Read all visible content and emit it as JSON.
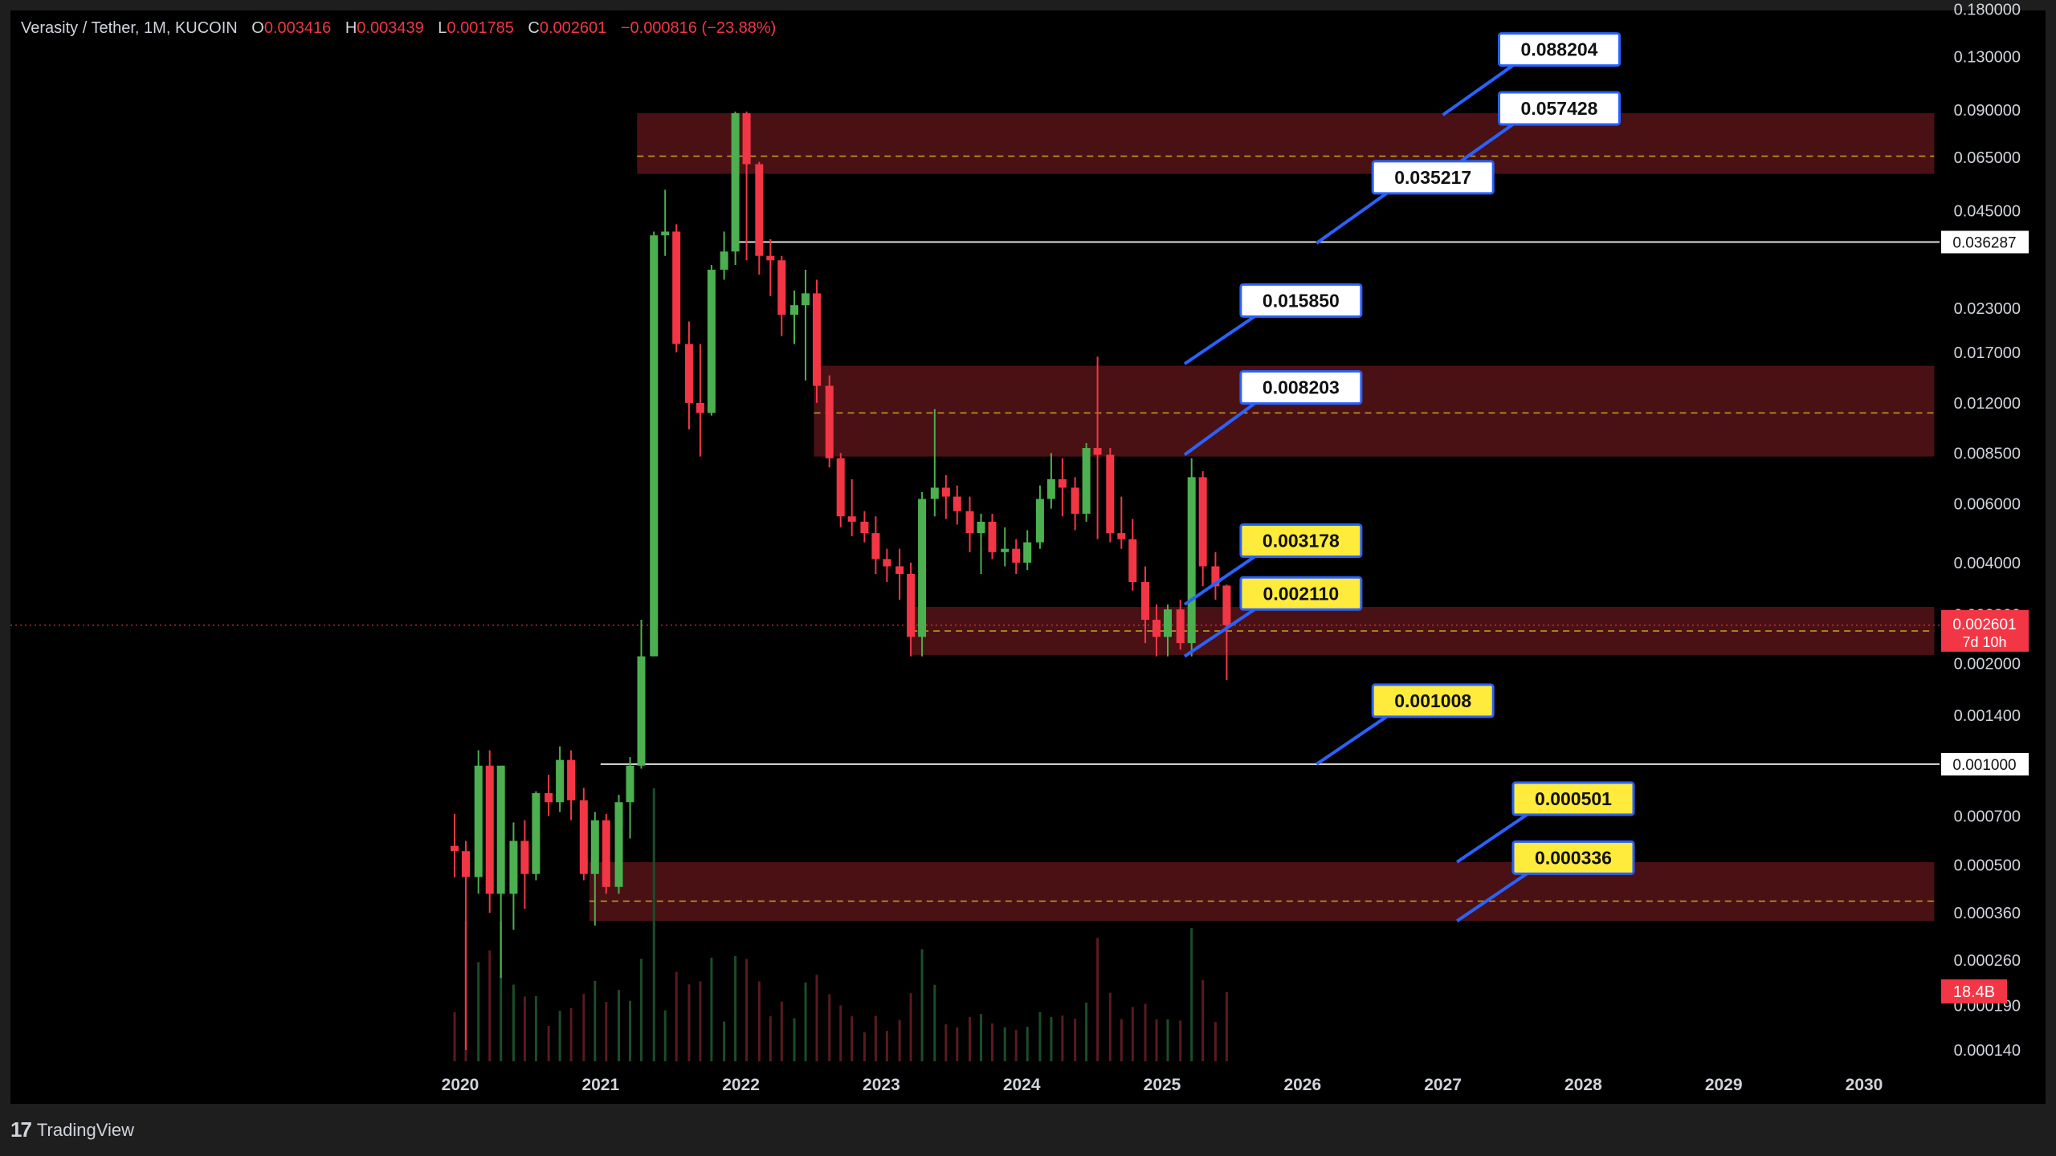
{
  "legend": {
    "symbol": "Verasity / Tether, 1M, KUCOIN",
    "open_label": "O",
    "open": "0.003416",
    "high_label": "H",
    "high": "0.003439",
    "low_label": "L",
    "low": "0.001785",
    "close_label": "C",
    "close": "0.002601",
    "change": "−0.000816 (−23.88%)"
  },
  "branding": {
    "logo_mark": "17",
    "logo_text": "TradingView"
  },
  "colors": {
    "up": "#4caf50",
    "down": "#f23645",
    "zone_fill": "#4a1115",
    "zone_mid": "#c9a227",
    "callout_white": "#ffffff",
    "callout_yellow": "#ffeb3b",
    "callout_border": "#2962ff"
  },
  "chart_data": {
    "type": "candlestick",
    "timeframe": "1M",
    "y_scale": "log",
    "ylim": [
      0.00012,
      0.18
    ],
    "xlim": [
      "2019-12",
      "2030-06"
    ],
    "x_tick_labels": [
      "2020",
      "2021",
      "2022",
      "2023",
      "2024",
      "2025",
      "2026",
      "2027",
      "2028",
      "2029",
      "2030"
    ],
    "y_tick_labels": [
      "0.180000",
      "0.130000",
      "0.090000",
      "0.065000",
      "0.045000",
      "0.035000",
      "0.023000",
      "0.017000",
      "0.012000",
      "0.008500",
      "0.006000",
      "0.004000",
      "0.002800",
      "0.002000",
      "0.001400",
      "0.000700",
      "0.000500",
      "0.000360",
      "0.000260",
      "0.000190",
      "0.000140"
    ],
    "candles": [
      [
        2019.96,
        0.00057,
        0.00071,
        0.00046,
        0.00055
      ],
      [
        2020.04,
        0.00055,
        0.00059,
        0.00014,
        0.00046
      ],
      [
        2020.13,
        0.00046,
        0.0011,
        0.00041,
        0.00099
      ],
      [
        2020.21,
        0.00099,
        0.0011,
        0.00036,
        0.00041
      ],
      [
        2020.29,
        0.00041,
        0.00097,
        0.00023,
        0.00099
      ],
      [
        2020.38,
        0.00041,
        0.00067,
        0.00032,
        0.00059
      ],
      [
        2020.46,
        0.00059,
        0.00068,
        0.00037,
        0.00047
      ],
      [
        2020.54,
        0.00047,
        0.00083,
        0.00045,
        0.00082
      ],
      [
        2020.63,
        0.00082,
        0.00093,
        0.0007,
        0.00077
      ],
      [
        2020.71,
        0.00077,
        0.00113,
        0.00072,
        0.00103
      ],
      [
        2020.79,
        0.00103,
        0.0011,
        0.00068,
        0.00078
      ],
      [
        2020.88,
        0.00078,
        0.00085,
        0.00045,
        0.00047
      ],
      [
        2020.96,
        0.00047,
        0.00072,
        0.00033,
        0.00068
      ],
      [
        2021.04,
        0.00068,
        0.00071,
        0.00041,
        0.00043
      ],
      [
        2021.13,
        0.00043,
        0.00081,
        0.00041,
        0.00077
      ],
      [
        2021.21,
        0.00077,
        0.00105,
        0.0006,
        0.00099
      ],
      [
        2021.29,
        0.00099,
        0.0027,
        0.00097,
        0.0021
      ],
      [
        2021.38,
        0.0021,
        0.039,
        0.0021,
        0.038
      ],
      [
        2021.46,
        0.038,
        0.052,
        0.033,
        0.039
      ],
      [
        2021.54,
        0.039,
        0.041,
        0.017,
        0.018
      ],
      [
        2021.63,
        0.018,
        0.021,
        0.01,
        0.012
      ],
      [
        2021.71,
        0.012,
        0.018,
        0.0083,
        0.0112
      ],
      [
        2021.79,
        0.0112,
        0.031,
        0.011,
        0.03
      ],
      [
        2021.88,
        0.03,
        0.039,
        0.028,
        0.034
      ],
      [
        2021.96,
        0.034,
        0.089,
        0.031,
        0.088
      ],
      [
        2022.04,
        0.088,
        0.089,
        0.032,
        0.062
      ],
      [
        2022.13,
        0.062,
        0.063,
        0.029,
        0.033
      ],
      [
        2022.21,
        0.033,
        0.037,
        0.025,
        0.032
      ],
      [
        2022.29,
        0.032,
        0.033,
        0.019,
        0.022
      ],
      [
        2022.38,
        0.022,
        0.026,
        0.018,
        0.0235
      ],
      [
        2022.46,
        0.0235,
        0.03,
        0.014,
        0.0255
      ],
      [
        2022.54,
        0.0255,
        0.028,
        0.012,
        0.0135
      ],
      [
        2022.63,
        0.0135,
        0.0145,
        0.0077,
        0.0082
      ],
      [
        2022.71,
        0.0082,
        0.0085,
        0.0051,
        0.0055
      ],
      [
        2022.79,
        0.0055,
        0.0071,
        0.0048,
        0.0053
      ],
      [
        2022.88,
        0.0053,
        0.0057,
        0.0046,
        0.0049
      ],
      [
        2022.96,
        0.0049,
        0.0055,
        0.0037,
        0.0041
      ],
      [
        2023.04,
        0.0041,
        0.0044,
        0.0035,
        0.0039
      ],
      [
        2023.13,
        0.0039,
        0.0044,
        0.0031,
        0.0037
      ],
      [
        2023.21,
        0.0037,
        0.004,
        0.0021,
        0.0024
      ],
      [
        2023.29,
        0.0024,
        0.0065,
        0.0021,
        0.0062
      ],
      [
        2023.38,
        0.0062,
        0.0115,
        0.0055,
        0.0067
      ],
      [
        2023.46,
        0.0067,
        0.0073,
        0.0054,
        0.0063
      ],
      [
        2023.54,
        0.0063,
        0.0068,
        0.0052,
        0.0057
      ],
      [
        2023.63,
        0.0057,
        0.0063,
        0.0043,
        0.0049
      ],
      [
        2023.71,
        0.0049,
        0.0056,
        0.0037,
        0.0053
      ],
      [
        2023.79,
        0.0053,
        0.0056,
        0.0041,
        0.0043
      ],
      [
        2023.88,
        0.0043,
        0.0051,
        0.0039,
        0.0044
      ],
      [
        2023.96,
        0.0044,
        0.0047,
        0.0037,
        0.004
      ],
      [
        2024.04,
        0.004,
        0.005,
        0.0038,
        0.0046
      ],
      [
        2024.13,
        0.0046,
        0.0068,
        0.0044,
        0.0062
      ],
      [
        2024.21,
        0.0062,
        0.0085,
        0.0058,
        0.0071
      ],
      [
        2024.29,
        0.0071,
        0.0082,
        0.0055,
        0.0067
      ],
      [
        2024.38,
        0.0067,
        0.0072,
        0.005,
        0.0056
      ],
      [
        2024.46,
        0.0056,
        0.0091,
        0.0053,
        0.0088
      ],
      [
        2024.54,
        0.0088,
        0.0165,
        0.0047,
        0.0084
      ],
      [
        2024.63,
        0.0084,
        0.0088,
        0.0046,
        0.0049
      ],
      [
        2024.71,
        0.0049,
        0.0063,
        0.0044,
        0.0047
      ],
      [
        2024.79,
        0.0047,
        0.0054,
        0.0033,
        0.0035
      ],
      [
        2024.88,
        0.0035,
        0.0039,
        0.0023,
        0.0027
      ],
      [
        2024.96,
        0.0027,
        0.003,
        0.0021,
        0.0024
      ],
      [
        2025.04,
        0.0024,
        0.003,
        0.0021,
        0.0029
      ],
      [
        2025.13,
        0.0029,
        0.0031,
        0.0022,
        0.0023
      ],
      [
        2025.21,
        0.0023,
        0.0082,
        0.0021,
        0.0072
      ],
      [
        2025.29,
        0.0072,
        0.0075,
        0.0034,
        0.0039
      ],
      [
        2025.38,
        0.0039,
        0.0043,
        0.0031,
        0.0034
      ],
      [
        2025.46,
        0.003416,
        0.003439,
        0.001785,
        0.002601
      ]
    ],
    "zones": [
      {
        "from": 2021.26,
        "to": 2030.5,
        "top": 0.088,
        "bottom": 0.058,
        "mid": 0.0655
      },
      {
        "from": 2022.52,
        "to": 2030.5,
        "top": 0.0155,
        "bottom": 0.0083,
        "mid": 0.0112
      },
      {
        "from": 2023.21,
        "to": 2030.5,
        "top": 0.00295,
        "bottom": 0.00212,
        "mid": 0.0025
      },
      {
        "from": 2020.92,
        "to": 2030.5,
        "top": 0.00051,
        "bottom": 0.00034,
        "mid": 0.00039
      }
    ],
    "horizontal_lines": [
      {
        "from": 2021.96,
        "value": 0.036287,
        "label": "0.036287"
      },
      {
        "from": 2021.0,
        "value": 0.001,
        "label": "0.001000"
      }
    ],
    "callouts": [
      {
        "text": "0.088204",
        "style": "white",
        "anchor": [
          2027.0,
          0.087
        ],
        "box": [
          2027.4,
          0.135
        ]
      },
      {
        "text": "0.057428",
        "style": "white",
        "anchor": [
          2027.0,
          0.058
        ],
        "box": [
          2027.4,
          0.09
        ]
      },
      {
        "text": "0.035217",
        "style": "white",
        "anchor": [
          2026.1,
          0.036
        ],
        "box": [
          2026.5,
          0.056
        ]
      },
      {
        "text": "0.015850",
        "style": "white",
        "anchor": [
          2025.16,
          0.0157
        ],
        "box": [
          2025.56,
          0.024
        ]
      },
      {
        "text": "0.008203",
        "style": "white",
        "anchor": [
          2025.16,
          0.0084
        ],
        "box": [
          2025.56,
          0.0132
        ]
      },
      {
        "text": "0.003178",
        "style": "yellow",
        "anchor": [
          2025.16,
          0.003
        ],
        "box": [
          2025.56,
          0.0046
        ]
      },
      {
        "text": "0.002110",
        "style": "yellow",
        "anchor": [
          2025.16,
          0.0021
        ],
        "box": [
          2025.56,
          0.0032
        ]
      },
      {
        "text": "0.001008",
        "style": "yellow",
        "anchor": [
          2026.1,
          0.001
        ],
        "box": [
          2026.5,
          0.00153
        ]
      },
      {
        "text": "0.000501",
        "style": "yellow",
        "anchor": [
          2027.1,
          0.00051
        ],
        "box": [
          2027.5,
          0.00078
        ]
      },
      {
        "text": "0.000336",
        "style": "yellow",
        "anchor": [
          2027.1,
          0.00034
        ],
        "box": [
          2027.5,
          0.00052
        ]
      }
    ],
    "last_price": {
      "value": "0.002601",
      "countdown": "7d 10h"
    },
    "volume_label": "18.4B"
  }
}
